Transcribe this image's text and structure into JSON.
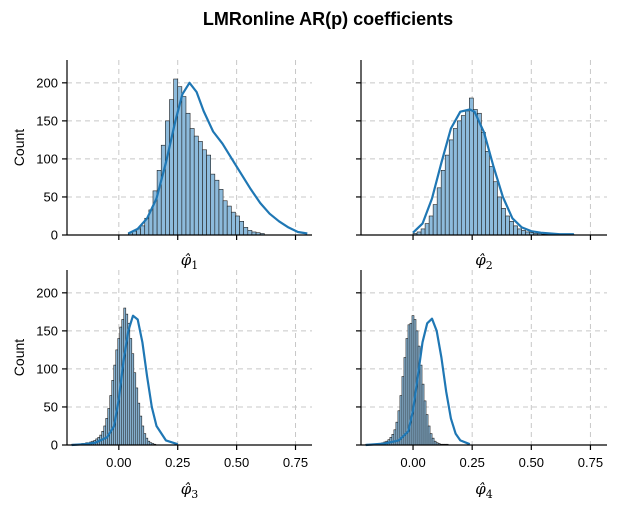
{
  "chart_data": {
    "type": "histogram",
    "title": "LMRonline AR(p) coefficients",
    "sharey": true,
    "sharex": true,
    "xlim": [
      -0.22,
      0.82
    ],
    "ylim": [
      0,
      230
    ],
    "xticks": [
      0.0,
      0.25,
      0.5,
      0.75
    ],
    "xtick_labels": [
      "0.00",
      "0.25",
      "0.50",
      "0.75"
    ],
    "yticks": [
      0,
      50,
      100,
      150,
      200
    ],
    "ytick_labels": [
      "0",
      "50",
      "100",
      "150",
      "200"
    ],
    "ylabel": "Count",
    "grid": true,
    "colors": {
      "bar_fill": "#8dbbdc",
      "bar_edge": "#1f1f1f",
      "kde": "#1f77b4",
      "grid": "#c8c8c8"
    },
    "panels": [
      {
        "xlabel_base": "φ̂",
        "xlabel_sub": "1",
        "show_ylabel": true,
        "show_xticklabels": false,
        "bin_start": 0.04,
        "bin_width": 0.0175,
        "counts": [
          3,
          5,
          8,
          12,
          22,
          33,
          58,
          85,
          118,
          150,
          178,
          205,
          195,
          182,
          160,
          140,
          130,
          123,
          112,
          105,
          80,
          72,
          60,
          45,
          38,
          30,
          25,
          18,
          10,
          6,
          4,
          3,
          2
        ],
        "kde_x": [
          0.04,
          0.08,
          0.12,
          0.16,
          0.2,
          0.24,
          0.27,
          0.3,
          0.33,
          0.36,
          0.4,
          0.44,
          0.48,
          0.52,
          0.56,
          0.6,
          0.64,
          0.68,
          0.72,
          0.76,
          0.8
        ],
        "kde_y": [
          2,
          8,
          22,
          48,
          95,
          150,
          185,
          200,
          188,
          163,
          136,
          120,
          100,
          80,
          60,
          42,
          28,
          18,
          10,
          4,
          2
        ]
      },
      {
        "xlabel_base": "φ̂",
        "xlabel_sub": "2",
        "show_ylabel": false,
        "show_xticklabels": false,
        "bin_start": 0.0,
        "bin_width": 0.017,
        "counts": [
          2,
          4,
          8,
          15,
          25,
          40,
          62,
          85,
          105,
          125,
          140,
          150,
          157,
          163,
          180,
          165,
          160,
          135,
          110,
          90,
          70,
          50,
          35,
          25,
          18,
          12,
          8,
          6,
          4,
          3,
          2,
          2,
          1,
          1,
          1,
          1,
          1,
          1,
          1,
          1
        ],
        "kde_x": [
          0.0,
          0.04,
          0.08,
          0.12,
          0.16,
          0.2,
          0.24,
          0.26,
          0.3,
          0.34,
          0.38,
          0.42,
          0.46,
          0.5,
          0.54,
          0.58,
          0.62,
          0.68
        ],
        "kde_y": [
          3,
          15,
          48,
          95,
          140,
          162,
          165,
          162,
          135,
          90,
          50,
          22,
          10,
          5,
          3,
          2,
          1,
          1
        ]
      },
      {
        "xlabel_base": "φ̂",
        "xlabel_sub": "3",
        "show_ylabel": true,
        "show_xticklabels": true,
        "bin_start": -0.2,
        "bin_width": 0.0085,
        "counts": [
          1,
          1,
          1,
          1,
          1,
          2,
          2,
          3,
          3,
          4,
          5,
          6,
          8,
          10,
          13,
          18,
          25,
          35,
          48,
          65,
          85,
          105,
          125,
          140,
          155,
          165,
          180,
          172,
          160,
          140,
          120,
          95,
          75,
          55,
          38,
          25,
          15,
          9,
          5,
          3,
          2,
          1
        ],
        "kde_x": [
          -0.2,
          -0.15,
          -0.1,
          -0.05,
          -0.02,
          0.0,
          0.02,
          0.04,
          0.06,
          0.08,
          0.1,
          0.12,
          0.14,
          0.16,
          0.2,
          0.25
        ],
        "kde_y": [
          0,
          1,
          3,
          10,
          25,
          60,
          110,
          150,
          170,
          165,
          135,
          90,
          50,
          25,
          6,
          1
        ]
      },
      {
        "xlabel_base": "φ̂",
        "xlabel_sub": "4",
        "show_ylabel": false,
        "show_xticklabels": true,
        "bin_start": -0.2,
        "bin_width": 0.0085,
        "counts": [
          1,
          1,
          1,
          1,
          1,
          1,
          2,
          2,
          3,
          4,
          5,
          7,
          10,
          14,
          20,
          30,
          45,
          65,
          90,
          115,
          140,
          158,
          160,
          170,
          165,
          150,
          130,
          105,
          80,
          58,
          40,
          25,
          15,
          9,
          5,
          3,
          2,
          1,
          1,
          1,
          1
        ],
        "kde_x": [
          -0.2,
          -0.12,
          -0.06,
          -0.02,
          0.0,
          0.02,
          0.04,
          0.06,
          0.08,
          0.1,
          0.12,
          0.14,
          0.16,
          0.18,
          0.2,
          0.24
        ],
        "kde_y": [
          0,
          2,
          6,
          18,
          45,
          90,
          135,
          160,
          166,
          150,
          115,
          70,
          35,
          15,
          6,
          1
        ]
      }
    ]
  }
}
